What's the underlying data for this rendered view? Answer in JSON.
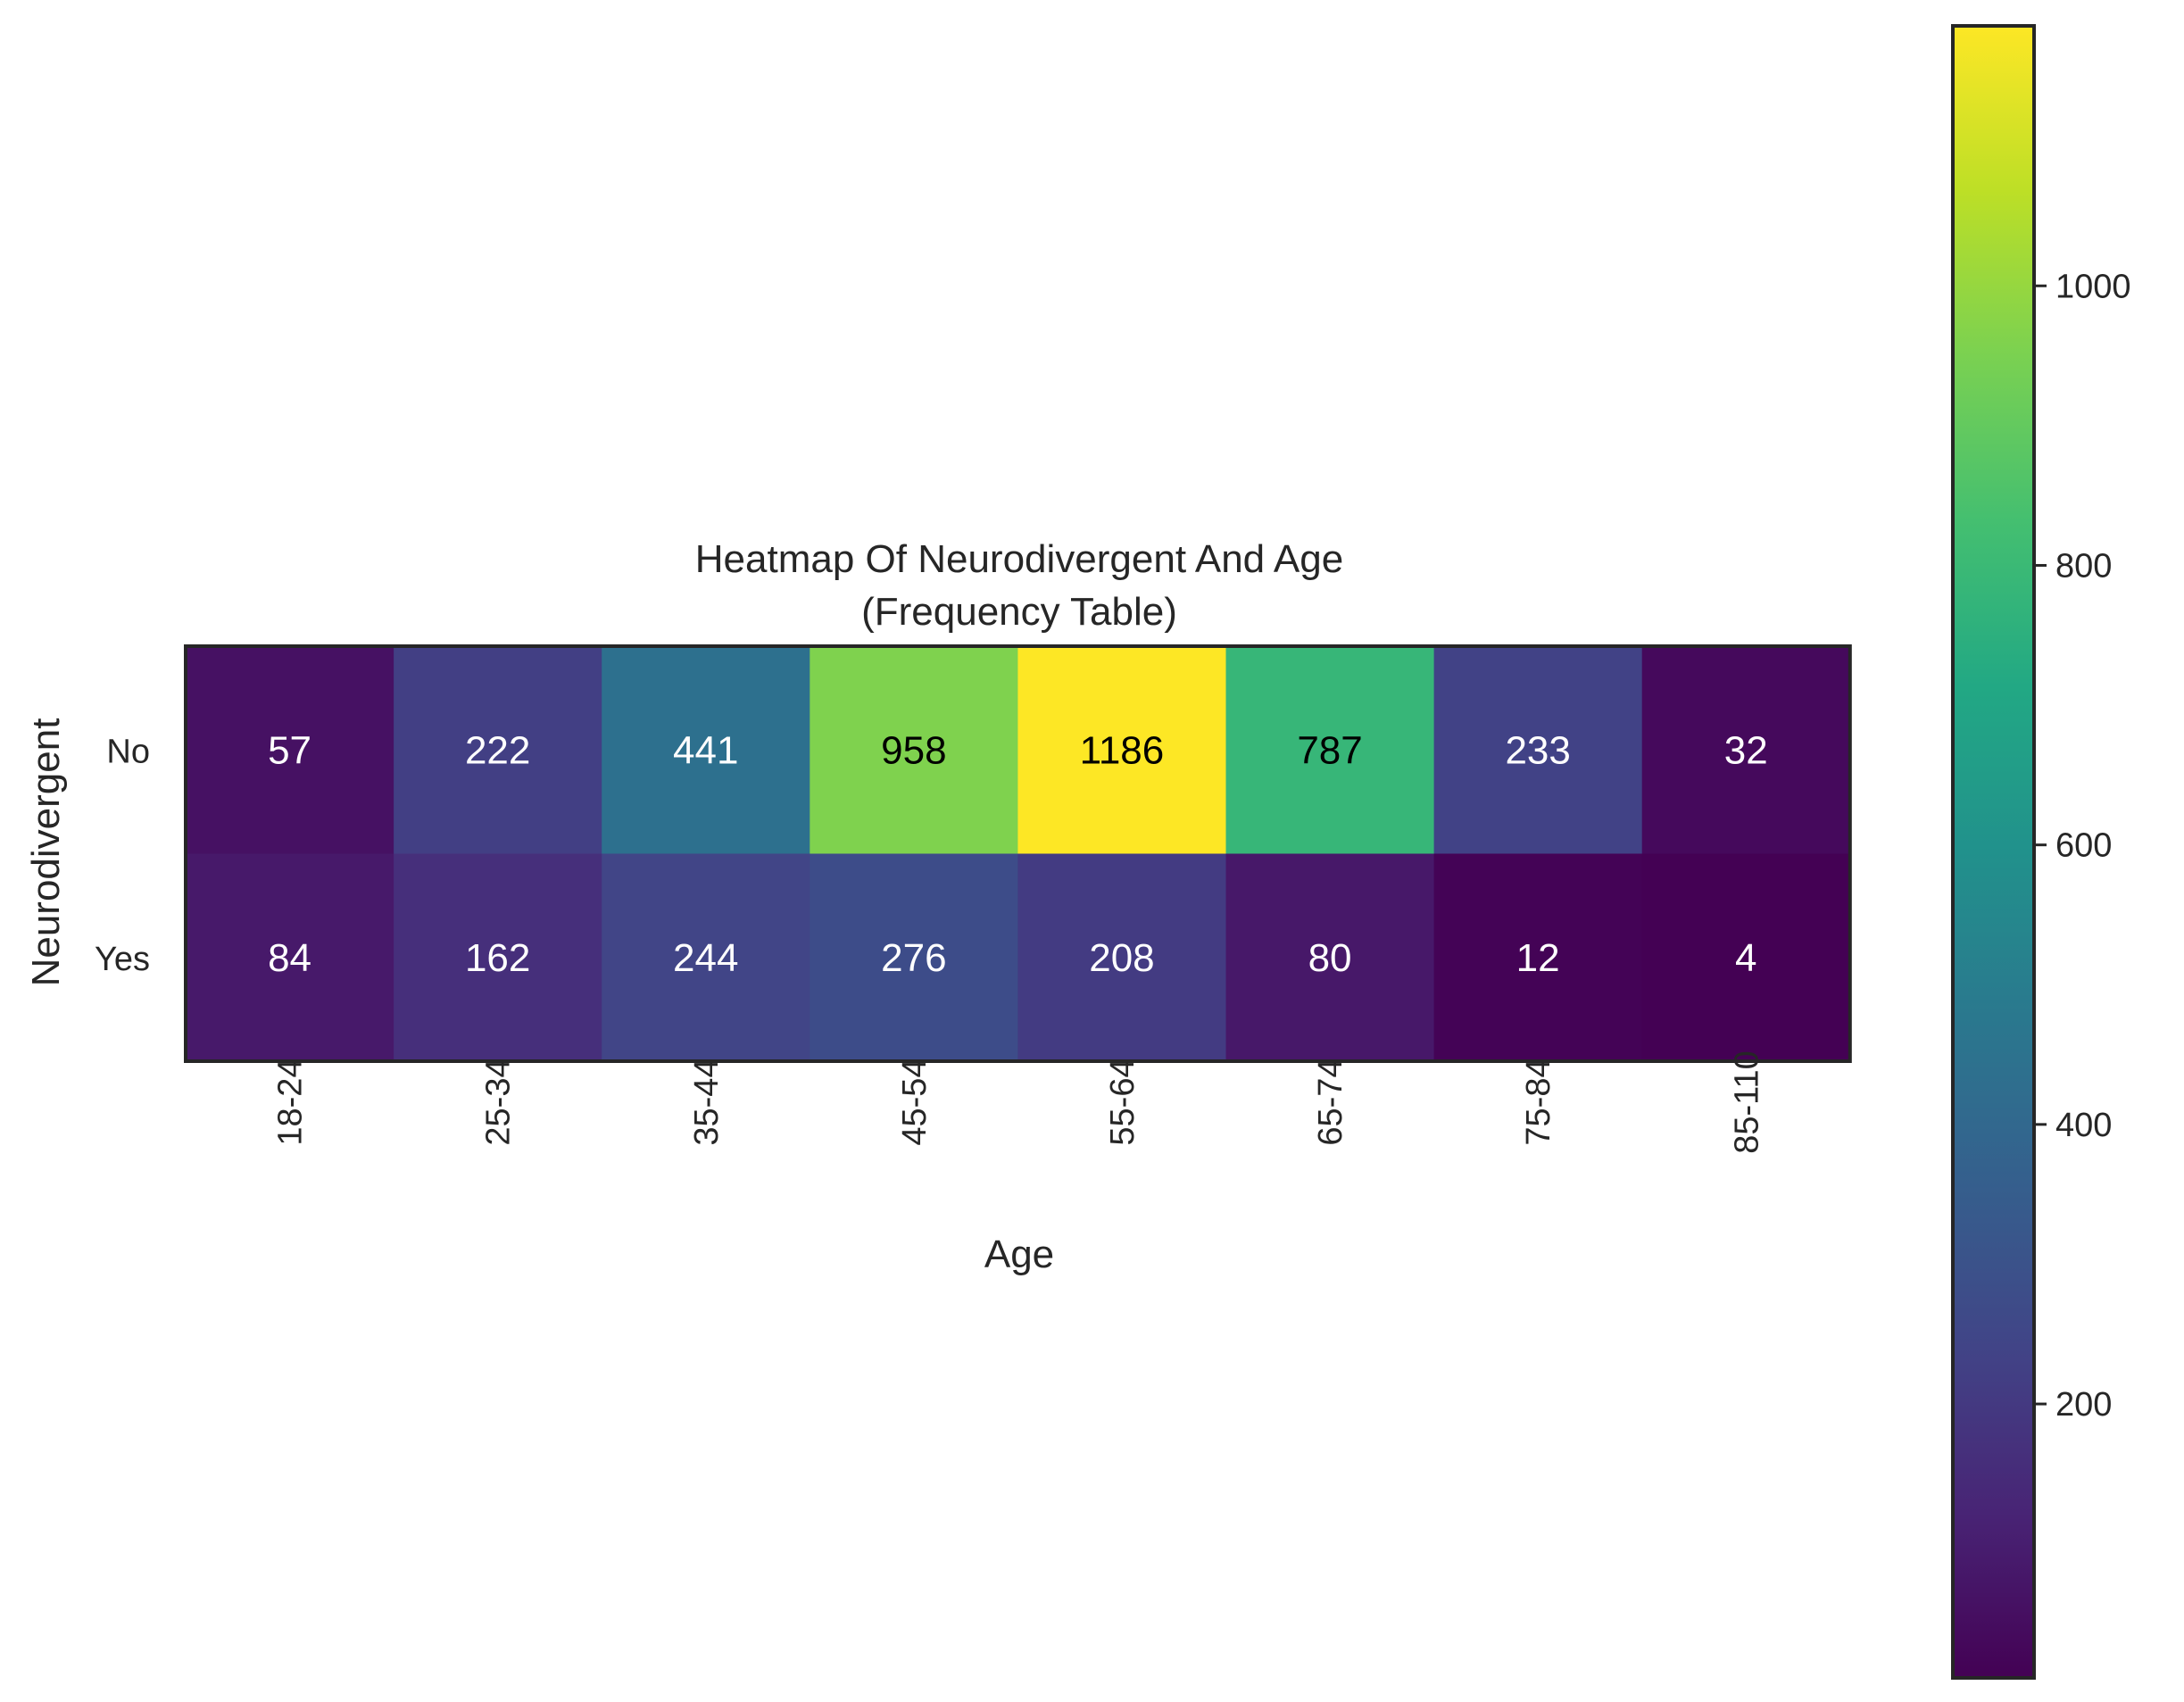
{
  "chart_data": {
    "type": "heatmap",
    "title": "Heatmap Of Neurodivergent And Age",
    "subtitle": "(Frequency Table)",
    "xlabel": "Age",
    "ylabel": "Neurodivergent",
    "x_categories": [
      "18-24",
      "25-34",
      "35-44",
      "45-54",
      "55-64",
      "65-74",
      "75-84",
      "85-110"
    ],
    "y_categories": [
      "No",
      "Yes"
    ],
    "values": [
      [
        57,
        222,
        441,
        958,
        1186,
        787,
        233,
        32
      ],
      [
        84,
        162,
        244,
        276,
        208,
        80,
        12,
        4
      ]
    ],
    "colormap": "viridis",
    "colorbar": {
      "range": [
        4,
        1186
      ],
      "ticks": [
        200,
        400,
        600,
        800,
        1000
      ]
    },
    "annotation_colors": {
      "dark": "#ffffff",
      "light": "#000000"
    }
  }
}
